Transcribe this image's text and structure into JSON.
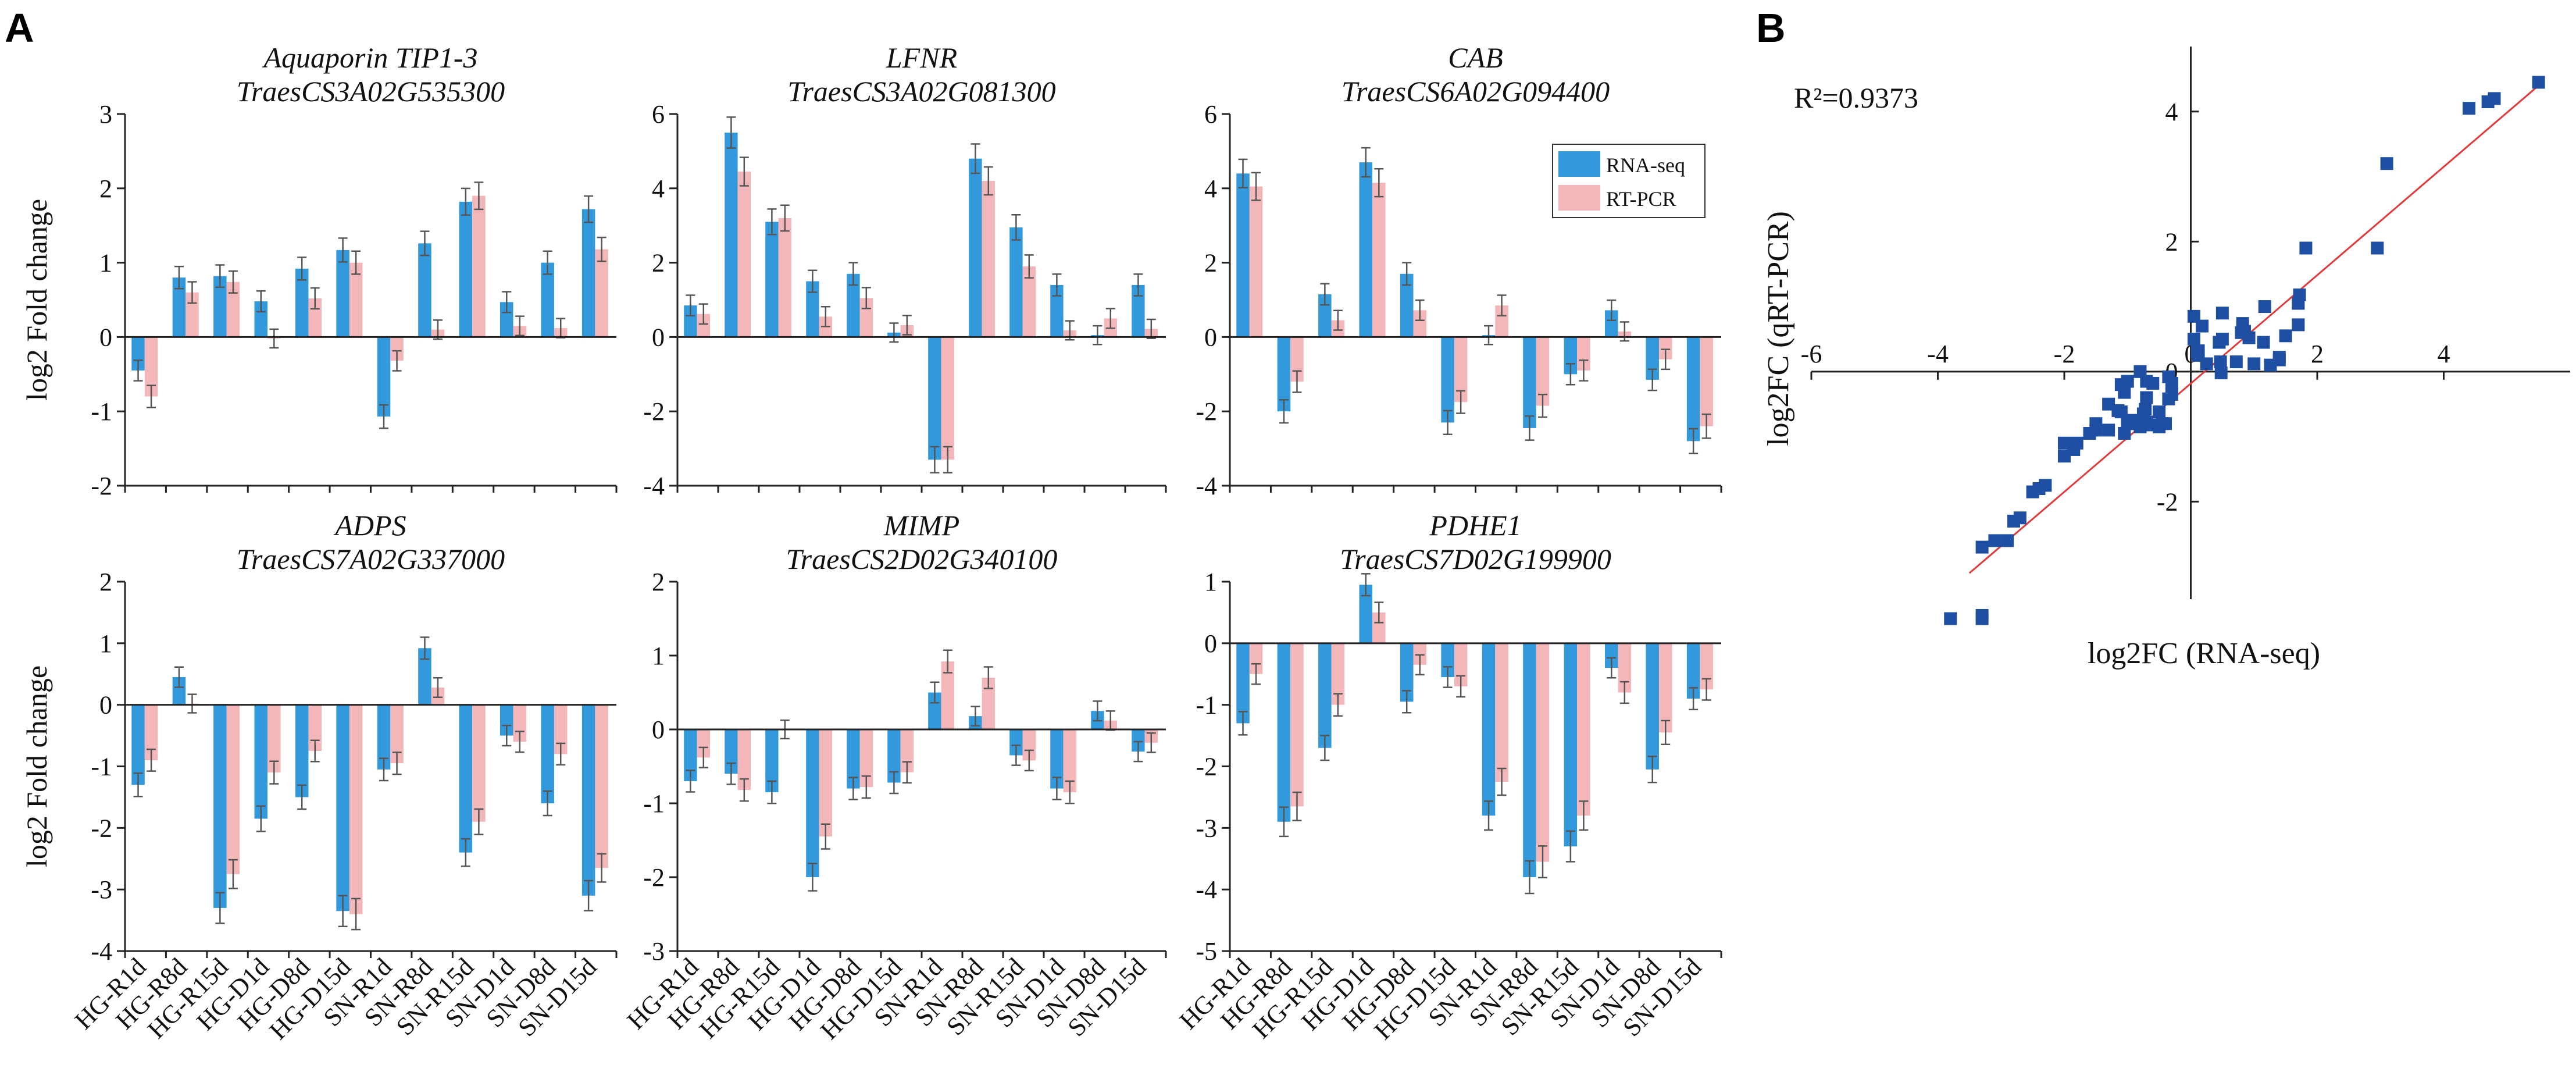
{
  "colors": {
    "rna": "#3399dd",
    "rt": "#f4b7b9",
    "scatter": "#1f4fa3",
    "fit": "#e03a3a",
    "error": "#555555",
    "axis": "#222222"
  },
  "panel_labels": {
    "a": "A",
    "b": "B"
  },
  "categories": [
    "HG-R1d",
    "HG-R8d",
    "HG-R15d",
    "HG-D1d",
    "HG-D8d",
    "HG-D15d",
    "SN-R1d",
    "SN-R8d",
    "SN-R15d",
    "SN-D1d",
    "SN-D8d",
    "SN-D15d"
  ],
  "legend": {
    "rna": "RNA-seq",
    "rt": "RT-PCR"
  },
  "ylabel": "log2 Fold change",
  "chart_data": [
    {
      "type": "bar",
      "title": "Aquaporin TIP1-3",
      "subtitle": "TraesCS3A02G535300",
      "ylim": [
        -2,
        3
      ],
      "yticks": [
        -2,
        -1,
        0,
        1,
        2,
        3
      ],
      "series": [
        {
          "name": "RNA-seq",
          "values": [
            -0.45,
            0.8,
            0.82,
            0.48,
            0.92,
            1.17,
            -1.07,
            1.26,
            1.82,
            0.47,
            1.0,
            1.72
          ]
        },
        {
          "name": "RT-PCR",
          "values": [
            -0.8,
            0.6,
            0.74,
            -0.02,
            0.52,
            1.0,
            -0.32,
            0.1,
            1.9,
            0.15,
            0.12,
            1.18
          ]
        }
      ]
    },
    {
      "type": "bar",
      "title": "LFNR",
      "subtitle": "TraesCS3A02G081300",
      "ylim": [
        -4,
        6
      ],
      "yticks": [
        -4,
        -2,
        0,
        2,
        4,
        6
      ],
      "series": [
        {
          "name": "RNA-seq",
          "values": [
            0.85,
            5.5,
            3.1,
            1.5,
            1.7,
            0.12,
            -3.3,
            4.8,
            2.95,
            1.4,
            0.05,
            1.4
          ]
        },
        {
          "name": "RT-PCR",
          "values": [
            0.62,
            4.45,
            3.2,
            0.55,
            1.05,
            0.32,
            -3.3,
            4.2,
            1.9,
            0.18,
            0.5,
            0.22
          ]
        }
      ]
    },
    {
      "type": "bar",
      "title": "CAB",
      "subtitle": "TraesCS6A02G094400",
      "ylim": [
        -4,
        6
      ],
      "yticks": [
        -4,
        -2,
        0,
        2,
        4,
        6
      ],
      "legend": true,
      "series": [
        {
          "name": "RNA-seq",
          "values": [
            4.4,
            -2.0,
            1.15,
            4.7,
            1.7,
            -2.3,
            0.05,
            -2.45,
            -1.0,
            0.72,
            -1.15,
            -2.8
          ]
        },
        {
          "name": "RT-PCR",
          "values": [
            4.05,
            -1.2,
            0.45,
            4.15,
            0.72,
            -1.75,
            0.85,
            -1.85,
            -0.9,
            0.15,
            -0.6,
            -2.4
          ]
        }
      ]
    },
    {
      "type": "bar",
      "title": "ADPS",
      "subtitle": "TraesCS7A02G337000",
      "ylim": [
        -4,
        2
      ],
      "yticks": [
        -4,
        -3,
        -2,
        -1,
        0,
        1,
        2
      ],
      "series": [
        {
          "name": "RNA-seq",
          "values": [
            -1.3,
            0.45,
            -3.3,
            -1.85,
            -1.5,
            -3.35,
            -1.05,
            0.92,
            -2.4,
            -0.5,
            -1.6,
            -3.1
          ]
        },
        {
          "name": "RT-PCR",
          "values": [
            -0.9,
            0.02,
            -2.75,
            -1.1,
            -0.75,
            -3.4,
            -0.95,
            0.28,
            -1.9,
            -0.6,
            -0.8,
            -2.65
          ]
        }
      ]
    },
    {
      "type": "bar",
      "title": "MIMP",
      "subtitle": "TraesCS2D02G340100",
      "ylim": [
        -3,
        2
      ],
      "yticks": [
        -3,
        -2,
        -1,
        0,
        1,
        2
      ],
      "series": [
        {
          "name": "RNA-seq",
          "values": [
            -0.7,
            -0.6,
            -0.85,
            -2.0,
            -0.8,
            -0.72,
            0.5,
            0.18,
            -0.35,
            -0.8,
            0.25,
            -0.3
          ]
        },
        {
          "name": "RT-PCR",
          "values": [
            -0.38,
            -0.82,
            0.0,
            -1.45,
            -0.78,
            -0.58,
            0.92,
            0.7,
            -0.42,
            -0.85,
            0.12,
            -0.18
          ]
        }
      ]
    },
    {
      "type": "bar",
      "title": "PDHE1",
      "subtitle": "TraesCS7D02G199900",
      "ylim": [
        -5,
        1
      ],
      "yticks": [
        -5,
        -4,
        -3,
        -2,
        -1,
        0,
        1
      ],
      "series": [
        {
          "name": "RNA-seq",
          "values": [
            -1.3,
            -2.9,
            -1.7,
            0.95,
            -0.95,
            -0.55,
            -2.8,
            -3.8,
            -3.3,
            -0.4,
            -2.05,
            -0.9
          ]
        },
        {
          "name": "RT-PCR",
          "values": [
            -0.5,
            -2.65,
            -1.0,
            0.5,
            -0.35,
            -0.7,
            -2.25,
            -3.55,
            -2.8,
            -0.8,
            -1.45,
            -0.75
          ]
        }
      ]
    },
    {
      "type": "scatter",
      "annotation": "R²=0.9373",
      "xlabel": "log2FC (RNA-seq)",
      "ylabel": "log2FC (qRT-PCR)",
      "xlim": [
        -6,
        6
      ],
      "ylim": [
        -3.5,
        5
      ],
      "xticks": [
        -6,
        -4,
        -2,
        0,
        2,
        4
      ],
      "yticks": [
        -2,
        0,
        2,
        4
      ],
      "fit": {
        "x": [
          -3.5,
          5.5
        ],
        "y": [
          -3.1,
          4.4
        ]
      },
      "points": [
        [
          -3.8,
          -3.8
        ],
        [
          -3.3,
          -3.8
        ],
        [
          -3.3,
          -3.75
        ],
        [
          -3.3,
          -2.7
        ],
        [
          -3.1,
          -2.6
        ],
        [
          -2.9,
          -2.6
        ],
        [
          -2.8,
          -2.3
        ],
        [
          -2.7,
          -2.25
        ],
        [
          -2.5,
          -1.85
        ],
        [
          -2.4,
          -1.8
        ],
        [
          -2.3,
          -1.75
        ],
        [
          -2.0,
          -1.3
        ],
        [
          -2.0,
          -1.1
        ],
        [
          -1.85,
          -1.2
        ],
        [
          -1.8,
          -1.1
        ],
        [
          -1.6,
          -0.95
        ],
        [
          -1.5,
          -0.8
        ],
        [
          -1.5,
          -0.9
        ],
        [
          -1.3,
          -0.5
        ],
        [
          -1.3,
          -0.9
        ],
        [
          -1.1,
          -0.62
        ],
        [
          -1.05,
          -0.95
        ],
        [
          -1.0,
          -0.75
        ],
        [
          -1.0,
          -0.8
        ],
        [
          -0.9,
          -0.8
        ],
        [
          -0.85,
          -0.8
        ],
        [
          -0.8,
          -0.85
        ],
        [
          -0.8,
          -0.75
        ],
        [
          -0.75,
          -0.65
        ],
        [
          -0.72,
          -0.58
        ],
        [
          -0.7,
          -0.78
        ],
        [
          -0.7,
          -0.4
        ],
        [
          -0.6,
          -0.82
        ],
        [
          -0.5,
          -0.62
        ],
        [
          -0.5,
          -0.85
        ],
        [
          -0.45,
          -0.8
        ],
        [
          -0.4,
          -0.8
        ],
        [
          -0.35,
          -0.42
        ],
        [
          -0.3,
          -0.18
        ],
        [
          -0.3,
          -0.35
        ],
        [
          -0.6,
          -0.18
        ],
        [
          -0.7,
          -0.15
        ],
        [
          -1.0,
          -0.15
        ],
        [
          -1.1,
          -0.2
        ],
        [
          -1.15,
          -0.6
        ],
        [
          -0.8,
          0.0
        ],
        [
          -0.35,
          -0.08
        ],
        [
          -1.05,
          -0.32
        ],
        [
          0.05,
          0.85
        ],
        [
          0.05,
          0.5
        ],
        [
          0.1,
          0.3
        ],
        [
          0.12,
          0.25
        ],
        [
          0.12,
          0.32
        ],
        [
          0.18,
          0.7
        ],
        [
          0.25,
          0.12
        ],
        [
          0.45,
          0.45
        ],
        [
          0.47,
          0.15
        ],
        [
          0.48,
          -0.02
        ],
        [
          0.5,
          0.9
        ],
        [
          0.5,
          0.5
        ],
        [
          0.72,
          0.15
        ],
        [
          0.8,
          0.6
        ],
        [
          0.82,
          0.74
        ],
        [
          0.85,
          0.62
        ],
        [
          0.92,
          0.52
        ],
        [
          1.0,
          0.12
        ],
        [
          1.15,
          0.45
        ],
        [
          1.17,
          1.0
        ],
        [
          1.26,
          0.1
        ],
        [
          1.4,
          0.18
        ],
        [
          1.4,
          0.22
        ],
        [
          1.5,
          0.55
        ],
        [
          1.7,
          1.05
        ],
        [
          1.7,
          0.72
        ],
        [
          1.72,
          1.18
        ],
        [
          1.82,
          1.9
        ],
        [
          2.95,
          1.9
        ],
        [
          3.1,
          3.2
        ],
        [
          4.4,
          4.05
        ],
        [
          4.7,
          4.15
        ],
        [
          4.8,
          4.2
        ],
        [
          5.5,
          4.45
        ]
      ]
    }
  ]
}
